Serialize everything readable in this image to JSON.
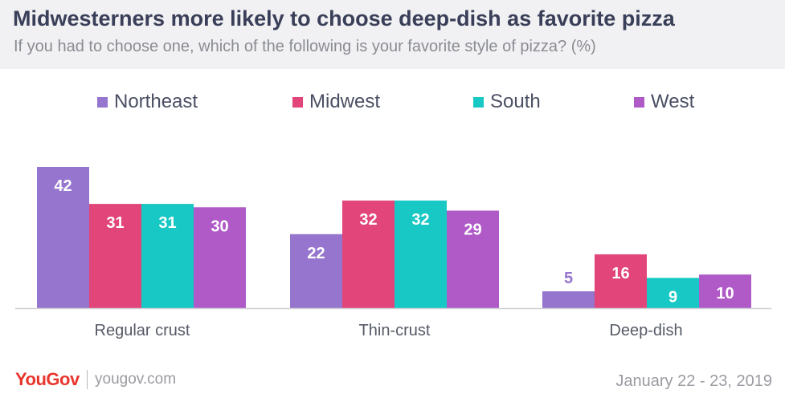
{
  "header": {
    "title": "Midwesterners more likely to choose deep-dish as favorite pizza",
    "subtitle": "If you had to choose one, which of the following is your favorite style of pizza? (%)"
  },
  "legend": [
    {
      "label": "Northeast",
      "color": "#9575cd"
    },
    {
      "label": "Midwest",
      "color": "#e1457a"
    },
    {
      "label": "South",
      "color": "#17c8c4"
    },
    {
      "label": "West",
      "color": "#b05ac8"
    }
  ],
  "chart_data": {
    "type": "bar",
    "title": "Midwesterners more likely to choose deep-dish as favorite pizza",
    "subtitle": "If you had to choose one, which of the following is your favorite style of pizza? (%)",
    "categories": [
      "Regular crust",
      "Thin-crust",
      "Deep-dish"
    ],
    "series": [
      {
        "name": "Northeast",
        "values": [
          42,
          22,
          5
        ]
      },
      {
        "name": "Midwest",
        "values": [
          31,
          32,
          16
        ]
      },
      {
        "name": "South",
        "values": [
          31,
          32,
          9
        ]
      },
      {
        "name": "West",
        "values": [
          30,
          29,
          10
        ]
      }
    ],
    "ylim": [
      0,
      42
    ],
    "grid": false,
    "legend_position": "top"
  },
  "footer": {
    "logo": "YouGov",
    "url": "yougov.com",
    "date": "January 22 - 23, 2019"
  }
}
